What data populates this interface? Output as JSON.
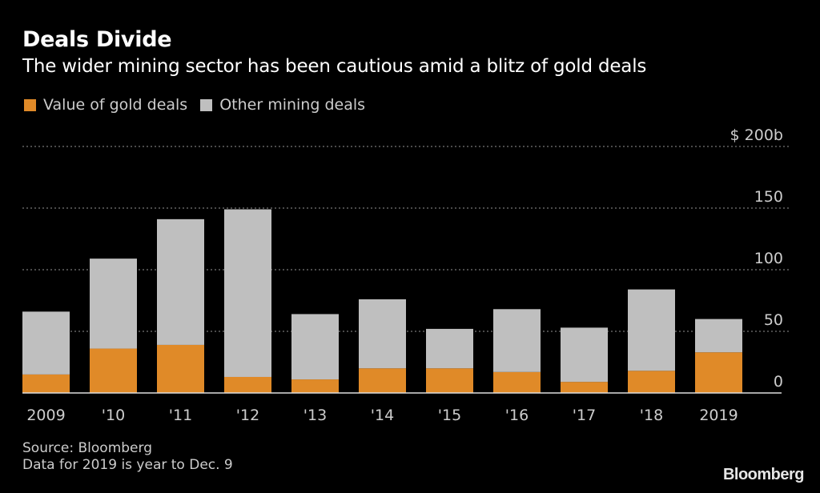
{
  "header": {
    "title": "Deals Divide",
    "subtitle": "The wider mining sector has been cautious amid a blitz of gold deals"
  },
  "legend": [
    {
      "label": "Value of gold deals",
      "color": "#e08a28"
    },
    {
      "label": "Other mining deals",
      "color": "#bfbfbf"
    }
  ],
  "footer": {
    "source": "Source: Bloomberg",
    "note": "Data for 2019 is year to Dec. 9",
    "brand": "Bloomberg"
  },
  "chart_data": {
    "type": "bar",
    "stacked": true,
    "title": "Deals Divide",
    "subtitle": "The wider mining sector has been cautious amid a blitz of gold deals",
    "xlabel": "",
    "ylabel": "",
    "categories": [
      "2009",
      "'10",
      "'11",
      "'12",
      "'13",
      "'14",
      "'15",
      "'16",
      "'17",
      "'18",
      "2019"
    ],
    "series": [
      {
        "name": "Value of gold deals",
        "color": "#e08a28",
        "values": [
          15,
          36,
          39,
          13,
          11,
          20,
          20,
          17,
          9,
          18,
          33
        ]
      },
      {
        "name": "Other mining deals",
        "color": "#bfbfbf",
        "values": [
          51,
          73,
          102,
          136,
          53,
          56,
          32,
          51,
          44,
          66,
          27
        ]
      }
    ],
    "ylim": [
      0,
      200
    ],
    "yticks": [
      0,
      50,
      100,
      150,
      200
    ],
    "ytick_labels": [
      "0",
      "50",
      "100",
      "150",
      "$ 200b"
    ],
    "y_axis_position": "right",
    "grid": true,
    "legend_position": "top-left",
    "notes": [
      "Source: Bloomberg",
      "Data for 2019 is year to Dec. 9"
    ]
  }
}
